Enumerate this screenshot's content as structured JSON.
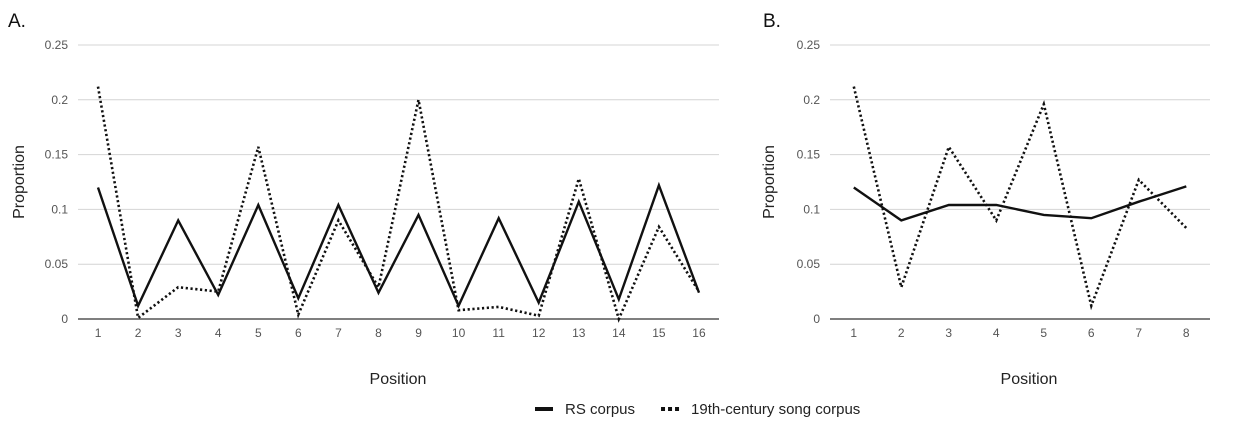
{
  "panels": [
    {
      "label": "A.",
      "chart_data": {
        "type": "line",
        "x": [
          1,
          2,
          3,
          4,
          5,
          6,
          7,
          8,
          9,
          10,
          11,
          12,
          13,
          14,
          15,
          16
        ],
        "ylabel": "Proportion",
        "xlabel": "Position",
        "ylim": [
          0,
          0.25
        ],
        "yticks": [
          "0",
          "0.05",
          "0.1",
          "0.15",
          "0.2",
          "0.25"
        ],
        "grid": true,
        "series": [
          {
            "name": "RS corpus",
            "style": "solid",
            "values": [
              0.12,
              0.012,
              0.09,
              0.022,
              0.104,
              0.019,
              0.104,
              0.024,
              0.095,
              0.012,
              0.092,
              0.015,
              0.107,
              0.018,
              0.122,
              0.024
            ]
          },
          {
            "name": "19th-century song corpus",
            "style": "dotted",
            "values": [
              0.212,
              0.001,
              0.029,
              0.025,
              0.157,
              0.004,
              0.09,
              0.029,
              0.2,
              0.008,
              0.011,
              0.003,
              0.128,
              0.0,
              0.084,
              0.025
            ]
          }
        ]
      }
    },
    {
      "label": "B.",
      "chart_data": {
        "type": "line",
        "x": [
          1,
          2,
          3,
          4,
          5,
          6,
          7,
          8
        ],
        "ylabel": "Proportion",
        "xlabel": "Position",
        "ylim": [
          0,
          0.25
        ],
        "yticks": [
          "0",
          "0.05",
          "0.1",
          "0.15",
          "0.2",
          "0.25"
        ],
        "grid": true,
        "series": [
          {
            "name": "RS corpus",
            "style": "solid",
            "values": [
              0.12,
              0.09,
              0.104,
              0.104,
              0.095,
              0.092,
              0.107,
              0.121
            ]
          },
          {
            "name": "19th-century song corpus",
            "style": "dotted",
            "values": [
              0.212,
              0.029,
              0.157,
              0.09,
              0.196,
              0.012,
              0.127,
              0.083
            ]
          }
        ]
      }
    }
  ],
  "legend": {
    "items": [
      {
        "label": "RS corpus",
        "style": "solid"
      },
      {
        "label": "19th-century song corpus",
        "style": "dotted"
      }
    ]
  },
  "colors": {
    "line": "#111111",
    "grid": "#d4d4d4",
    "tick": "#555555"
  }
}
